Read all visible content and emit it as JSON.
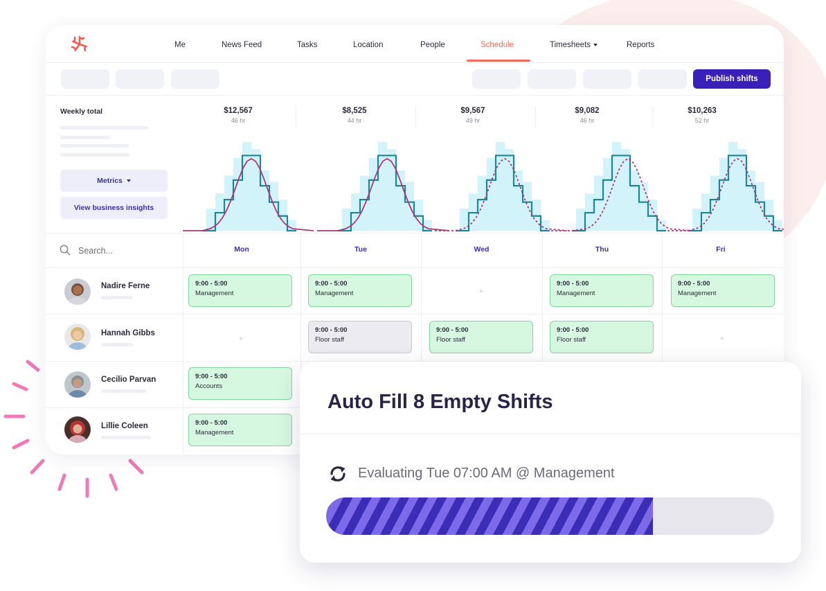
{
  "nav": {
    "items": [
      "Me",
      "News Feed",
      "Tasks",
      "Location",
      "People",
      "Schedule",
      "Timesheets",
      "Reports"
    ],
    "active": "Schedule"
  },
  "toolbar": {
    "publish_label": "Publish shifts"
  },
  "metrics": {
    "weekly_total_label": "Weekly total",
    "metrics_button": "Metrics",
    "insights_button": "View business insights"
  },
  "days": [
    {
      "name": "Mon",
      "amount": "$12,567",
      "hours": "46 hr"
    },
    {
      "name": "Tue",
      "amount": "$8,525",
      "hours": "44 hr"
    },
    {
      "name": "Wed",
      "amount": "$9,567",
      "hours": "49 hr"
    },
    {
      "name": "Thu",
      "amount": "$9,082",
      "hours": "46 hr"
    },
    {
      "name": "Fri",
      "amount": "$10,263",
      "hours": "52 hr"
    }
  ],
  "search": {
    "placeholder": "Search..."
  },
  "employees": [
    {
      "name": "Nadire Ferne",
      "shifts": [
        {
          "time": "9:00 - 5:00",
          "role": "Management",
          "style": "green"
        },
        {
          "time": "9:00 - 5:00",
          "role": "Management",
          "style": "green"
        },
        null,
        {
          "time": "9:00 - 5:00",
          "role": "Management",
          "style": "green"
        },
        {
          "time": "9:00 - 5:00",
          "role": "Management",
          "style": "green"
        }
      ]
    },
    {
      "name": "Hannah Gibbs",
      "shifts": [
        null,
        {
          "time": "9:00 - 5:00",
          "role": "Floor staff",
          "style": "gray"
        },
        {
          "time": "9:00 - 5:00",
          "role": "Floor staff",
          "style": "green"
        },
        {
          "time": "9:00 - 5:00",
          "role": "Floor staff",
          "style": "green"
        },
        null
      ]
    },
    {
      "name": "Cecilio Parvan",
      "shifts": [
        {
          "time": "9:00 - 5:00",
          "role": "Accounts",
          "style": "green"
        }
      ]
    },
    {
      "name": "Lillie Coleen",
      "shifts": [
        {
          "time": "9:00 - 5:00",
          "role": "Management",
          "style": "green"
        }
      ]
    }
  ],
  "empty_cell_symbol": "+",
  "autofill": {
    "title": "Auto Fill 8 Empty Shifts",
    "status": "Evaluating Tue 07:00 AM @ Management",
    "progress": 0.73
  },
  "colors": {
    "accent": "#3a1fb8",
    "nav_active": "#ef6a5a",
    "shift_green": "#d6f8e0",
    "shift_gray": "#ebebf0",
    "staffing_fill": "#d3f3fb",
    "scheduled_line": "#1e8597",
    "forecast_line": "#a8387a",
    "sparks": "#f07ab8"
  },
  "icons": [
    "logo-icon",
    "caret-down-icon",
    "search-icon",
    "refresh-icon"
  ]
}
